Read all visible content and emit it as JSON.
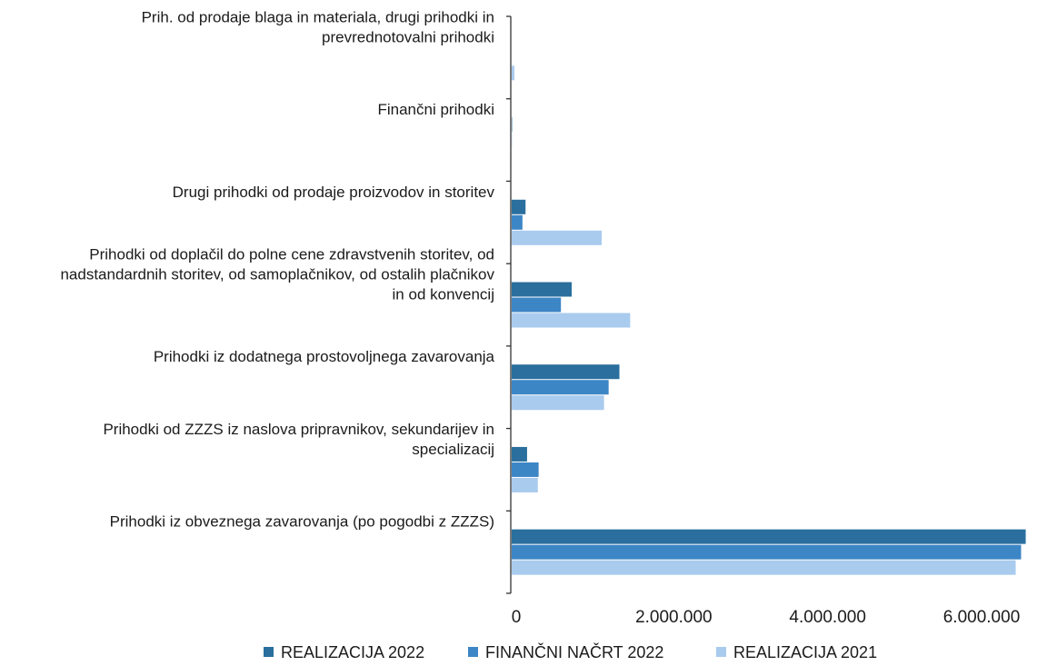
{
  "chart_data": {
    "type": "bar",
    "orientation": "horizontal",
    "title": "",
    "xlabel": "",
    "ylabel": "",
    "xlim": [
      0,
      6000000
    ],
    "xticks": [
      0,
      2000000,
      4000000,
      6000000
    ],
    "xtick_labels": [
      "0",
      "2.000.000",
      "4.000.000",
      "6.000.000"
    ],
    "grid": false,
    "legend_position": "bottom",
    "categories": [
      [
        "Prihodki iz obveznega zavarovanja (po pogodbi z ZZZS)"
      ],
      [
        "Prihodki od ZZZS iz naslova pripravnikov, sekundarijev in",
        "specializacij"
      ],
      [
        "Prihodki iz dodatnega prostovoljnega zavarovanja"
      ],
      [
        "Prihodki od doplačil do polne cene zdravstvenih storitev, od",
        "nadstandardnih storitev, od samoplačnikov, od ostalih plačnikov",
        "in od konvencij"
      ],
      [
        "Drugi prihodki od prodaje proizvodov in storitev"
      ],
      [
        "Finančni prihodki"
      ],
      [
        "Prih. od prodaje blaga in materiala, drugi prihodki in",
        "prevrednotovalni prihodki"
      ]
    ],
    "series": [
      {
        "name": "REALIZACIJA 2022",
        "color": "#2a6f9e",
        "values": [
          6680000,
          200000,
          1400000,
          780000,
          180000,
          5000,
          0
        ]
      },
      {
        "name": "FINANČNI NAČRT 2022",
        "color": "#3d86c6",
        "values": [
          6620000,
          350000,
          1260000,
          640000,
          140000,
          2000,
          0
        ]
      },
      {
        "name": "REALIZACIJA 2021",
        "color": "#a9cbee",
        "values": [
          6550000,
          340000,
          1200000,
          1540000,
          1170000,
          2000,
          35000
        ]
      }
    ]
  }
}
